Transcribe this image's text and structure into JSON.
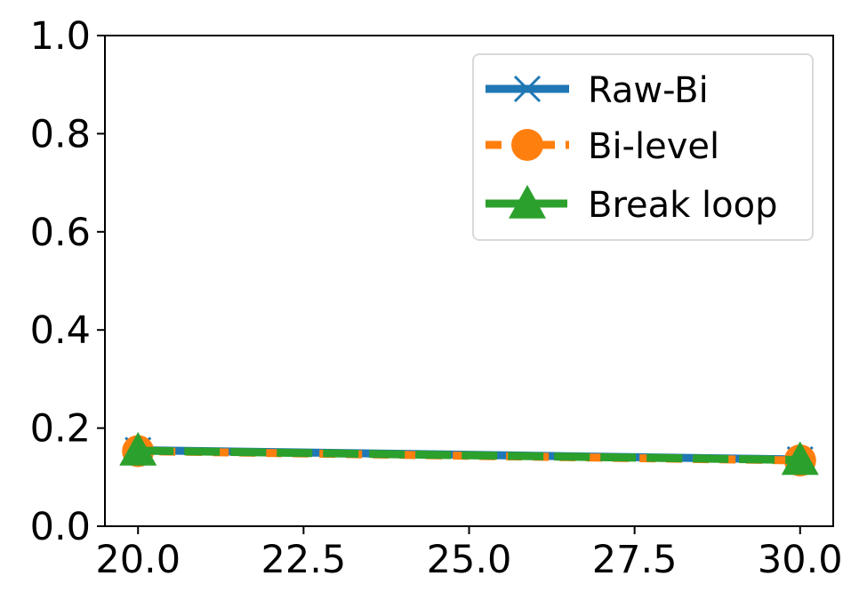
{
  "chart_data": {
    "type": "line",
    "title": "",
    "xlabel": "",
    "ylabel": "",
    "x": [
      20,
      30
    ],
    "xlim": [
      19.5,
      30.5
    ],
    "ylim": [
      0.0,
      1.0
    ],
    "xticks": [
      20.0,
      22.5,
      25.0,
      27.5,
      30.0
    ],
    "xtick_labels": [
      "20.0",
      "22.5",
      "25.0",
      "27.5",
      "30.0"
    ],
    "yticks": [
      0.0,
      0.2,
      0.4,
      0.6,
      0.8,
      1.0
    ],
    "ytick_labels": [
      "0.0",
      "0.2",
      "0.4",
      "0.6",
      "0.8",
      "1.0"
    ],
    "grid": false,
    "legend_position": "top-right",
    "series": [
      {
        "name": "Raw-Bi",
        "values": [
          0.155,
          0.136
        ],
        "color": "#1f77b4",
        "marker": "x",
        "linestyle": "solid"
      },
      {
        "name": "Bi-level",
        "values": [
          0.153,
          0.134
        ],
        "color": "#ff7f0e",
        "marker": "circle",
        "linestyle": "dashed"
      },
      {
        "name": "Break loop",
        "values": [
          0.154,
          0.135
        ],
        "color": "#2ca02c",
        "marker": "triangle",
        "linestyle": "dashed"
      }
    ]
  }
}
